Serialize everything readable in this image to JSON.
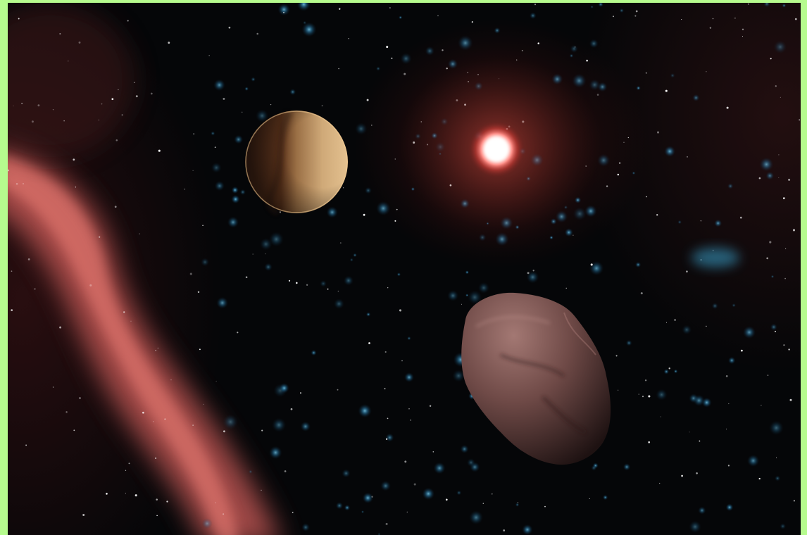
{
  "image": {
    "subject": "",
    "colors": {
      "border": "#b6fb8e",
      "space": "#050608",
      "nebula": "#d96560",
      "star_core": "#fff4ee",
      "star_halo": "#e2433c",
      "planet_light": "#d7b07a",
      "planet_dark": "#3a1f12",
      "asteroid": "#8a5f5c",
      "distant_stars": "#3ea7d6"
    }
  }
}
